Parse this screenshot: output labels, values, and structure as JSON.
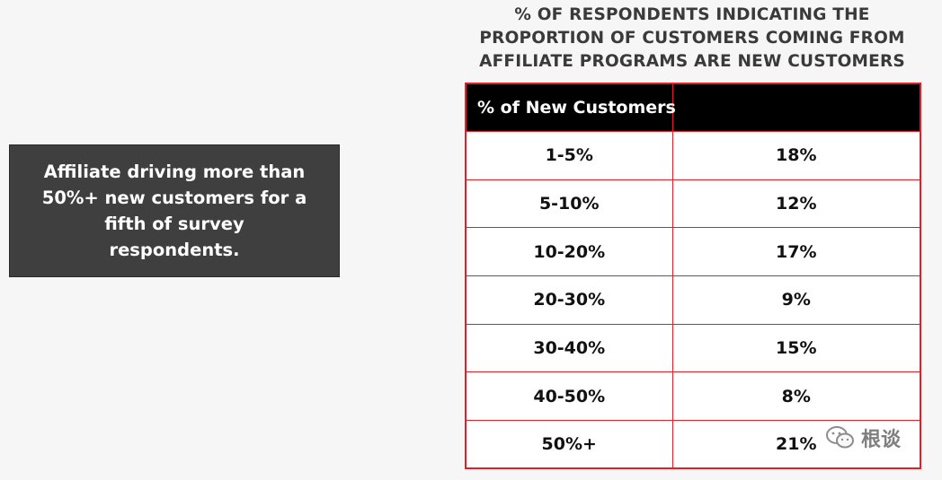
{
  "callout": {
    "text": "Affiliate driving more than 50%+ new customers for a fifth of survey respondents."
  },
  "chart_data": {
    "type": "table",
    "title": "% OF RESPONDENTS INDICATING THE PROPORTION OF CUSTOMERS COMING FROM AFFILIATE PROGRAMS ARE NEW CUSTOMERS",
    "columns": [
      "% of New Customers",
      ""
    ],
    "rows": [
      {
        "category": "1-5%",
        "value_label": "18%",
        "value": 18
      },
      {
        "category": "5-10%",
        "value_label": "12%",
        "value": 12
      },
      {
        "category": "10-20%",
        "value_label": "17%",
        "value": 17
      },
      {
        "category": "20-30%",
        "value_label": "9%",
        "value": 9
      },
      {
        "category": "30-40%",
        "value_label": "15%",
        "value": 15
      },
      {
        "category": "40-50%",
        "value_label": "8%",
        "value": 8
      },
      {
        "category": "50%+",
        "value_label": "21%",
        "value": 21
      }
    ]
  },
  "watermark": {
    "text": "根谈",
    "icon": "wechat-icon"
  },
  "colors": {
    "border": "#e41e26",
    "header_bg": "#000000",
    "callout_bg": "#3f3f3f"
  }
}
